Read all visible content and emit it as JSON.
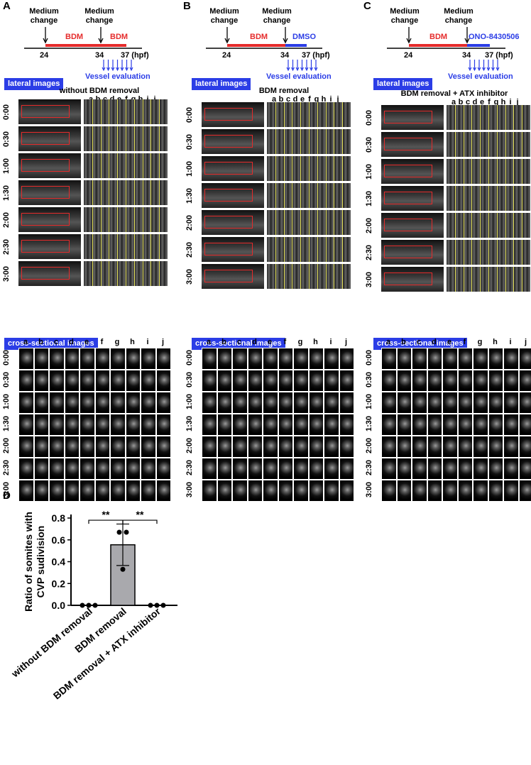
{
  "panels": {
    "A": {
      "letter": "A",
      "timeline": {
        "label1": "Medium change",
        "label2": "Medium change",
        "bar1": "BDM",
        "bar2": "BDM",
        "t24": "24",
        "t34": "34",
        "t37": "37 (hpf)",
        "bar2_color": "#e52b2b"
      },
      "vessel_eval": "Vessel evaluation",
      "lateral_label": "lateral images",
      "title": "without BDM removal",
      "cross_label": "cross-sectional images"
    },
    "B": {
      "letter": "B",
      "timeline": {
        "label1": "Medium change",
        "label2": "Medium change",
        "bar1": "BDM",
        "bar2": "DMSO",
        "t24": "24",
        "t34": "34",
        "t37": "37 (hpf)",
        "bar2_color": "#2b3de6"
      },
      "vessel_eval": "Vessel evaluation",
      "lateral_label": "lateral images",
      "title": "BDM removal",
      "cross_label": "cross-sectional images"
    },
    "C": {
      "letter": "C",
      "timeline": {
        "label1": "Medium change",
        "label2": "Medium change",
        "bar1": "BDM",
        "bar2": "ONO-8430506",
        "t24": "24",
        "t34": "34",
        "t37": "37 (hpf)",
        "bar2_color": "#2b3de6"
      },
      "vessel_eval": "Vessel evaluation",
      "lateral_label": "lateral images",
      "title": "BDM removal + ATX inhibitor",
      "cross_label": "cross-sectional images"
    }
  },
  "time_points": [
    "0:00",
    "0:30",
    "1:00",
    "1:30",
    "2:00",
    "2:30",
    "3:00"
  ],
  "columns": [
    "a",
    "b",
    "c",
    "d",
    "e",
    "f",
    "g",
    "h",
    "i",
    "j"
  ],
  "lateral_columns_compact": [
    "a",
    "b",
    "c",
    "d",
    "e",
    "f",
    "g",
    "h",
    "i",
    "j"
  ],
  "panel_d_letter": "D",
  "chart_data": {
    "type": "bar",
    "categories": [
      "without BDM removal",
      "BDM removal",
      "BDM removal + ATX inhibitor"
    ],
    "values": [
      0.0,
      0.555,
      0.0
    ],
    "error": [
      0.0,
      0.19,
      0.0
    ],
    "points": [
      [
        0,
        0,
        0
      ],
      [
        0.67,
        0.67,
        0.33
      ],
      [
        0,
        0,
        0
      ]
    ],
    "ylabel": "Ratio of somites with CVP sudivision",
    "ylim": [
      0.0,
      0.8
    ],
    "yticks": [
      "0.0",
      "0.2",
      "0.4",
      "0.6",
      "0.8"
    ],
    "significance": [
      "**",
      "**"
    ],
    "bar_color": "#a9a9ad"
  }
}
